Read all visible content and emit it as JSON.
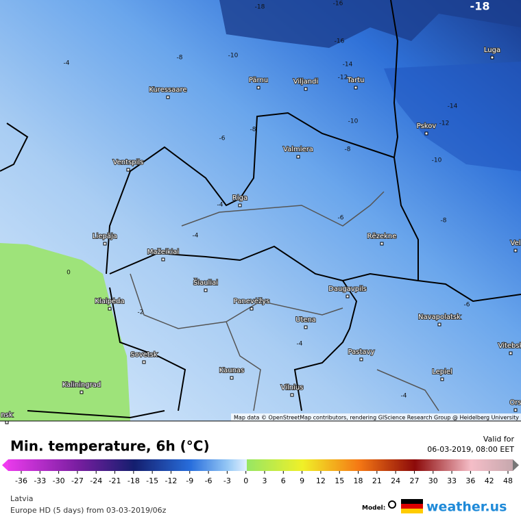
{
  "map": {
    "cities": [
      "Kuressaare",
      "Pärnu",
      "Viljandi",
      "Tartu",
      "Luga",
      "Pskov",
      "Valmiera",
      "Ventspils",
      "Riga",
      "Rēzekne",
      "Liepāja",
      "Mažeikiai",
      "Šiauliai",
      "Panevėžys",
      "Daugavpils",
      "Navapolatsk",
      "Klaipėda",
      "Utena",
      "Vitebsk",
      "Sovetsk",
      "Pastavy",
      "Kaunas",
      "Lepiel",
      "Kaliningrad",
      "Vilnius",
      "Ors",
      "Vel",
      "nsk"
    ],
    "contour_labels": [
      "-18",
      "-16",
      "-16",
      "-18",
      "-14",
      "-12",
      "-10",
      "-8",
      "-4",
      "-14",
      "-12",
      "-10",
      "-10",
      "-8",
      "-8",
      "-6",
      "-6",
      "-8",
      "-4",
      "-4",
      "-6",
      "-2",
      "-4",
      "0",
      "-4"
    ],
    "attribution": "Map data © OpenStreetMap contributors, rendering GIScience Research Group @ Heidelberg University"
  },
  "legend": {
    "title": "Min. temperature, 6h (°C)",
    "valid_label": "Valid for",
    "valid_time": "06-03-2019, 08:00 EET",
    "ticks": [
      -36,
      -33,
      -30,
      -27,
      -24,
      -21,
      -18,
      -15,
      -12,
      -9,
      -6,
      -3,
      0,
      3,
      6,
      9,
      12,
      15,
      18,
      21,
      24,
      27,
      30,
      33,
      36,
      42,
      48
    ]
  },
  "footer": {
    "region": "Latvia",
    "model_run": "Europe HD (5 days) from 03-03-2019/06z",
    "model_label": "Model:",
    "brand": "weather.us"
  }
}
